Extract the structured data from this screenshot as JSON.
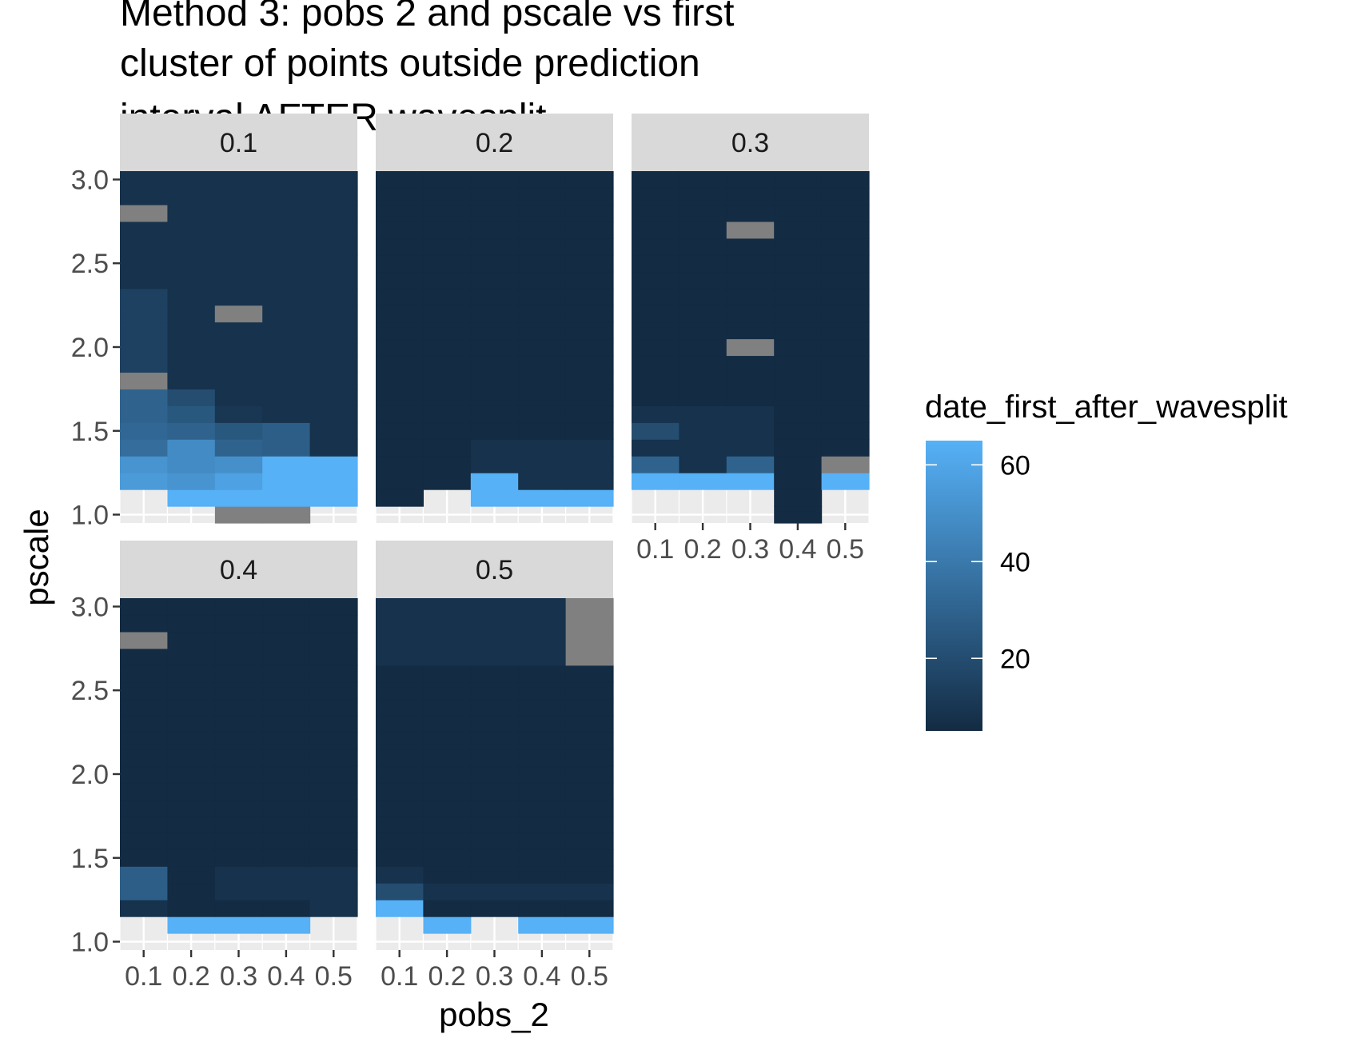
{
  "chart_data": {
    "type": "heatmap",
    "title_lines": [
      "Method 3: pobs 2 and pscale vs first",
      "cluster of points outside prediction",
      "interval AFTER wavesplit"
    ],
    "xlabel": "pobs_2",
    "ylabel": "pscale",
    "x_tick_labels": [
      "0.1",
      "0.2",
      "0.3",
      "0.4",
      "0.5"
    ],
    "y_tick_labels": [
      "1.0",
      "1.5",
      "2.0",
      "2.5",
      "3.0"
    ],
    "xlim": [
      0.05,
      0.55
    ],
    "ylim": [
      0.95,
      3.05
    ],
    "x_values": [
      0.1,
      0.2,
      0.3,
      0.4,
      0.5
    ],
    "y_values": [
      1.0,
      1.1,
      1.2,
      1.3,
      1.4,
      1.5,
      1.6,
      1.7,
      1.8,
      1.9,
      2.0,
      2.1,
      2.2,
      2.3,
      2.4,
      2.5,
      2.6,
      2.7,
      2.8,
      2.9,
      3.0
    ],
    "grid": true,
    "legend": {
      "title": "date_first_after_wavesplit",
      "position": "right",
      "type": "colorbar",
      "min": 5,
      "max": 65,
      "breaks": [
        20,
        40,
        60
      ],
      "break_labels": [
        "20",
        "40",
        "60"
      ],
      "low_color": "#132B43",
      "high_color": "#56B1F7",
      "na_color": "#808080"
    },
    "panel_bg_color": "#EBEBEB",
    "strip_bg_color": "#D9D9D9",
    "facets": [
      {
        "label": "0.1",
        "values": [
          [
            -1,
            -1,
            0,
            0,
            -1
          ],
          [
            -1,
            65,
            65,
            65,
            65
          ],
          [
            55,
            52,
            58,
            65,
            65
          ],
          [
            52,
            48,
            50,
            65,
            65
          ],
          [
            35,
            48,
            30,
            28,
            8
          ],
          [
            32,
            30,
            25,
            28,
            8
          ],
          [
            30,
            25,
            10,
            8,
            8
          ],
          [
            30,
            20,
            8,
            8,
            8
          ],
          [
            0,
            8,
            8,
            8,
            8
          ],
          [
            15,
            8,
            8,
            8,
            8
          ],
          [
            15,
            8,
            8,
            8,
            8
          ],
          [
            15,
            8,
            8,
            8,
            8
          ],
          [
            15,
            8,
            0,
            8,
            8
          ],
          [
            15,
            8,
            8,
            8,
            8
          ],
          [
            8,
            8,
            8,
            8,
            8
          ],
          [
            8,
            8,
            8,
            8,
            8
          ],
          [
            8,
            8,
            8,
            8,
            8
          ],
          [
            8,
            8,
            8,
            8,
            8
          ],
          [
            0,
            8,
            8,
            8,
            8
          ],
          [
            8,
            8,
            8,
            8,
            8
          ],
          [
            8,
            8,
            8,
            8,
            8
          ]
        ]
      },
      {
        "label": "0.2",
        "values": [
          [
            -1,
            -1,
            -1,
            -1,
            -1
          ],
          [
            5,
            -1,
            65,
            65,
            65
          ],
          [
            5,
            5,
            65,
            8,
            8
          ],
          [
            5,
            5,
            8,
            8,
            8
          ],
          [
            5,
            5,
            8,
            8,
            8
          ],
          [
            5,
            5,
            5,
            5,
            5
          ],
          [
            5,
            5,
            5,
            5,
            5
          ],
          [
            5,
            5,
            5,
            5,
            5
          ],
          [
            5,
            5,
            5,
            5,
            5
          ],
          [
            5,
            5,
            5,
            5,
            5
          ],
          [
            5,
            5,
            5,
            5,
            5
          ],
          [
            5,
            5,
            5,
            5,
            5
          ],
          [
            5,
            5,
            5,
            5,
            5
          ],
          [
            5,
            5,
            5,
            5,
            5
          ],
          [
            5,
            5,
            5,
            5,
            5
          ],
          [
            5,
            5,
            5,
            5,
            5
          ],
          [
            5,
            5,
            5,
            5,
            5
          ],
          [
            5,
            5,
            5,
            5,
            5
          ],
          [
            5,
            5,
            5,
            5,
            5
          ],
          [
            5,
            5,
            5,
            5,
            5
          ],
          [
            5,
            5,
            5,
            5,
            5
          ]
        ]
      },
      {
        "label": "0.3",
        "values": [
          [
            -1,
            -1,
            -1,
            5,
            -1
          ],
          [
            -1,
            -1,
            -1,
            5,
            -1
          ],
          [
            65,
            65,
            65,
            5,
            65
          ],
          [
            30,
            8,
            30,
            5,
            0
          ],
          [
            8,
            8,
            8,
            5,
            5
          ],
          [
            20,
            8,
            8,
            5,
            5
          ],
          [
            8,
            8,
            8,
            5,
            5
          ],
          [
            5,
            5,
            5,
            5,
            5
          ],
          [
            5,
            5,
            5,
            5,
            5
          ],
          [
            5,
            5,
            5,
            5,
            5
          ],
          [
            5,
            5,
            0,
            5,
            5
          ],
          [
            5,
            5,
            5,
            5,
            5
          ],
          [
            5,
            5,
            5,
            5,
            5
          ],
          [
            5,
            5,
            5,
            5,
            5
          ],
          [
            5,
            5,
            5,
            5,
            5
          ],
          [
            5,
            5,
            5,
            5,
            5
          ],
          [
            5,
            5,
            5,
            5,
            5
          ],
          [
            5,
            5,
            0,
            5,
            5
          ],
          [
            5,
            5,
            5,
            5,
            5
          ],
          [
            5,
            5,
            5,
            5,
            5
          ],
          [
            5,
            5,
            5,
            5,
            5
          ]
        ]
      },
      {
        "label": "0.4",
        "values": [
          [
            -1,
            -1,
            -1,
            -1,
            -1
          ],
          [
            -1,
            65,
            65,
            65,
            -1
          ],
          [
            8,
            5,
            5,
            5,
            8
          ],
          [
            28,
            5,
            8,
            8,
            8
          ],
          [
            28,
            5,
            8,
            8,
            8
          ],
          [
            5,
            5,
            5,
            5,
            5
          ],
          [
            5,
            5,
            5,
            5,
            5
          ],
          [
            5,
            5,
            5,
            5,
            5
          ],
          [
            5,
            5,
            5,
            5,
            5
          ],
          [
            5,
            5,
            5,
            5,
            5
          ],
          [
            5,
            5,
            5,
            5,
            5
          ],
          [
            5,
            5,
            5,
            5,
            5
          ],
          [
            5,
            5,
            5,
            5,
            5
          ],
          [
            5,
            5,
            5,
            5,
            5
          ],
          [
            5,
            5,
            5,
            5,
            5
          ],
          [
            5,
            5,
            5,
            5,
            5
          ],
          [
            5,
            5,
            5,
            5,
            5
          ],
          [
            5,
            5,
            5,
            5,
            5
          ],
          [
            0,
            5,
            5,
            5,
            5
          ],
          [
            5,
            5,
            5,
            5,
            5
          ],
          [
            5,
            5,
            5,
            5,
            5
          ]
        ]
      },
      {
        "label": "0.5",
        "values": [
          [
            -1,
            -1,
            -1,
            -1,
            -1
          ],
          [
            -1,
            65,
            -1,
            65,
            65
          ],
          [
            65,
            5,
            5,
            5,
            5
          ],
          [
            20,
            8,
            8,
            8,
            8
          ],
          [
            8,
            5,
            5,
            5,
            5
          ],
          [
            5,
            5,
            5,
            5,
            5
          ],
          [
            5,
            5,
            5,
            5,
            5
          ],
          [
            5,
            5,
            5,
            5,
            5
          ],
          [
            5,
            5,
            5,
            5,
            5
          ],
          [
            5,
            5,
            5,
            5,
            5
          ],
          [
            5,
            5,
            5,
            5,
            5
          ],
          [
            5,
            5,
            5,
            5,
            5
          ],
          [
            5,
            5,
            5,
            5,
            5
          ],
          [
            5,
            5,
            5,
            5,
            5
          ],
          [
            5,
            5,
            5,
            5,
            5
          ],
          [
            5,
            5,
            5,
            5,
            5
          ],
          [
            5,
            5,
            5,
            5,
            5
          ],
          [
            8,
            8,
            8,
            8,
            0
          ],
          [
            8,
            8,
            8,
            8,
            0
          ],
          [
            8,
            8,
            8,
            8,
            0
          ],
          [
            8,
            8,
            8,
            8,
            0
          ]
        ]
      }
    ]
  }
}
